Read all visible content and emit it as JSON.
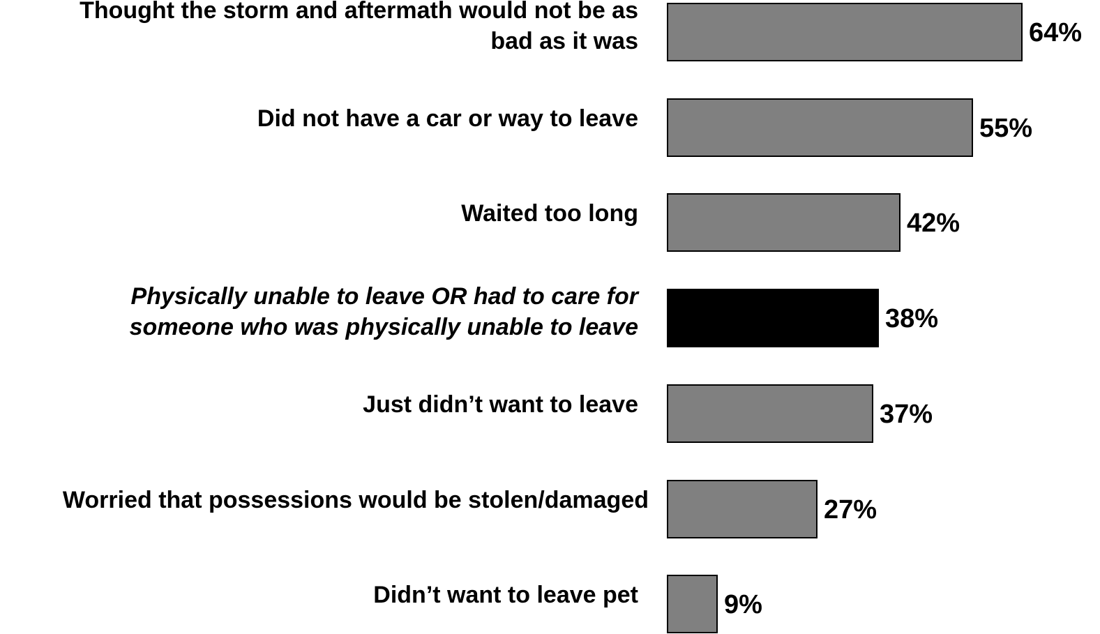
{
  "chart_data": {
    "type": "bar",
    "orientation": "horizontal",
    "categories": [
      [
        "Thought the storm and aftermath would not be as",
        "bad as it was"
      ],
      [
        "Did not have a car or way to leave"
      ],
      [
        "Waited too long"
      ],
      [
        "Physically unable to leave OR had to care for",
        "someone who was physically unable to leave"
      ],
      [
        "Just didn’t want to leave"
      ],
      [
        "Worried that possessions would be stolen/damaged"
      ],
      [
        "Didn’t want to leave pet"
      ]
    ],
    "values": [
      64,
      55,
      42,
      38,
      37,
      27,
      9
    ],
    "value_labels": [
      "64%",
      "55%",
      "42%",
      "38%",
      "37%",
      "27%",
      "9%"
    ],
    "highlighted": [
      false,
      false,
      false,
      true,
      false,
      false,
      false
    ],
    "italic_category": [
      false,
      false,
      false,
      true,
      false,
      false,
      false
    ],
    "bar_color": "#808080",
    "highlight_color": "#000000",
    "xlim": [
      0,
      64
    ],
    "grid": false,
    "legend": "none"
  }
}
